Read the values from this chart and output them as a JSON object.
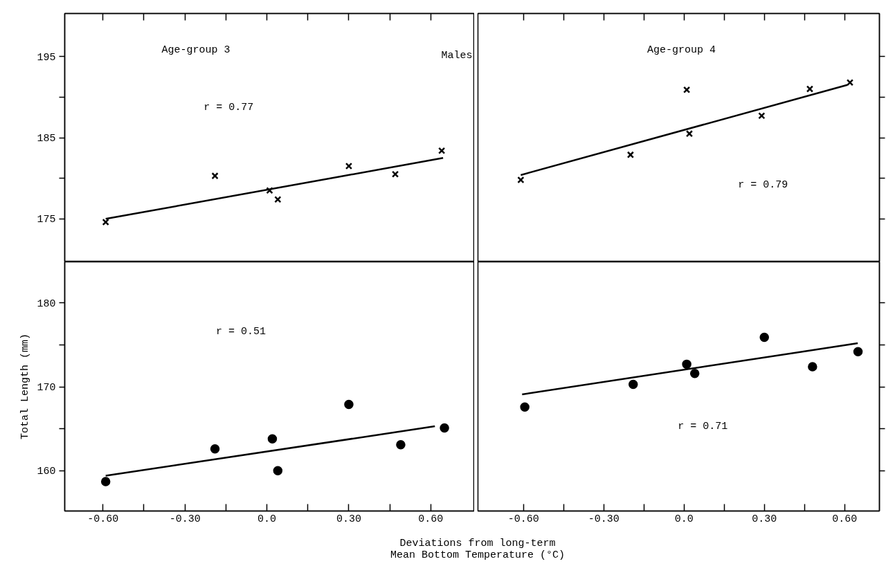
{
  "chart_data": [
    {
      "type": "scatter",
      "title": "Age-group 3",
      "annotations": [
        "Males",
        "r = 0.77"
      ],
      "tick_labels": "y",
      "xlim": [
        -0.74,
        0.76
      ],
      "ylim": [
        169.7,
        200.3
      ],
      "xticks": [
        {
          "value": -0.6,
          "label": null
        },
        {
          "value": -0.45,
          "label": null
        },
        {
          "value": -0.3,
          "label": null
        },
        {
          "value": -0.15,
          "label": null
        },
        {
          "value": 0.0,
          "label": null
        },
        {
          "value": 0.15,
          "label": null
        },
        {
          "value": 0.3,
          "label": null
        },
        {
          "value": 0.45,
          "label": null
        },
        {
          "value": 0.6,
          "label": null
        }
      ],
      "yticks": [
        175,
        {
          "value": 180,
          "label": null
        },
        185,
        {
          "value": 190,
          "label": null
        },
        195
      ],
      "series": [
        {
          "color": "#000000",
          "marker": "cross",
          "x": [
            -0.59,
            -0.19,
            0.01,
            0.04,
            0.3,
            0.47,
            0.64
          ],
          "values": [
            174.6,
            180.3,
            178.5,
            177.4,
            181.5,
            180.5,
            183.4
          ]
        },
        {
          "type": "line",
          "color": "#000000",
          "x": [
            -0.59,
            0.645
          ],
          "values": [
            175.0,
            182.5
          ]
        }
      ]
    },
    {
      "type": "scatter",
      "title": "Age-group 4",
      "annotations": [
        "r = 0.79"
      ],
      "tick_labels": false,
      "xlim": [
        -0.77,
        0.73
      ],
      "ylim": [
        169.7,
        200.3
      ],
      "xticks": [
        {
          "value": -0.6,
          "label": null
        },
        {
          "value": -0.45,
          "label": null
        },
        {
          "value": -0.3,
          "label": null
        },
        {
          "value": -0.15,
          "label": null
        },
        {
          "value": 0.0,
          "label": null
        },
        {
          "value": 0.15,
          "label": null
        },
        {
          "value": 0.3,
          "label": null
        },
        {
          "value": 0.45,
          "label": null
        },
        {
          "value": 0.6,
          "label": null
        }
      ],
      "yticks": [
        {
          "value": 175,
          "label": null
        },
        {
          "value": 180,
          "label": null
        },
        {
          "value": 185,
          "label": null
        },
        {
          "value": 190,
          "label": null
        },
        {
          "value": 195,
          "label": null
        }
      ],
      "series": [
        {
          "color": "#000000",
          "marker": "cross",
          "x": [
            -0.61,
            -0.2,
            0.01,
            0.02,
            0.29,
            0.47,
            0.62
          ],
          "values": [
            179.8,
            182.9,
            190.9,
            185.5,
            187.7,
            191.0,
            191.8
          ]
        },
        {
          "type": "line",
          "color": "#000000",
          "x": [
            -0.61,
            0.61
          ],
          "values": [
            180.4,
            191.5
          ]
        }
      ]
    },
    {
      "type": "scatter",
      "ylabel": "Total Length (mm)",
      "xlabel": "Deviations from long-term\nMean Bottom Temperature (°C)",
      "annotations": [
        "r = 0.51"
      ],
      "xlim": [
        -0.74,
        0.76
      ],
      "ylim": [
        155.2,
        184.9
      ],
      "xticks": [
        {
          "value": -0.6,
          "label": "-0.60"
        },
        {
          "value": -0.45,
          "label": null
        },
        {
          "value": -0.3,
          "label": "-0.30"
        },
        {
          "value": -0.15,
          "label": null
        },
        {
          "value": 0.0,
          "label": "0.0"
        },
        {
          "value": 0.15,
          "label": null
        },
        {
          "value": 0.3,
          "label": "0.30"
        },
        {
          "value": 0.45,
          "label": null
        },
        {
          "value": 0.6,
          "label": "0.60"
        }
      ],
      "yticks": [
        160,
        {
          "value": 165,
          "label": null
        },
        170,
        {
          "value": 175,
          "label": null
        },
        180
      ],
      "series": [
        {
          "color": "#000000",
          "marker": "circle",
          "x": [
            -0.59,
            -0.19,
            0.02,
            0.04,
            0.3,
            0.49,
            0.65
          ],
          "values": [
            158.7,
            162.6,
            163.8,
            160.0,
            167.9,
            163.1,
            165.1
          ]
        },
        {
          "type": "line",
          "color": "#000000",
          "x": [
            -0.59,
            0.615
          ],
          "values": [
            159.4,
            165.3
          ]
        }
      ]
    },
    {
      "type": "scatter",
      "annotations": [
        "r = 0.71"
      ],
      "tick_labels": "x",
      "xlim": [
        -0.77,
        0.73
      ],
      "ylim": [
        155.2,
        184.9
      ],
      "xticks": [
        {
          "value": -0.6,
          "label": "-0.60"
        },
        {
          "value": -0.45,
          "label": null
        },
        {
          "value": -0.3,
          "label": "-0.30"
        },
        {
          "value": -0.15,
          "label": null
        },
        {
          "value": 0.0,
          "label": "0.0"
        },
        {
          "value": 0.15,
          "label": null
        },
        {
          "value": 0.3,
          "label": "0.30"
        },
        {
          "value": 0.45,
          "label": null
        },
        {
          "value": 0.6,
          "label": "0.60"
        }
      ],
      "yticks": [
        {
          "value": 160,
          "label": null
        },
        {
          "value": 165,
          "label": null
        },
        {
          "value": 170,
          "label": null
        },
        {
          "value": 175,
          "label": null
        },
        {
          "value": 180,
          "label": null
        }
      ],
      "series": [
        {
          "color": "#000000",
          "marker": "circle",
          "x": [
            -0.595,
            -0.19,
            0.01,
            0.04,
            0.3,
            0.48,
            0.65
          ],
          "values": [
            167.6,
            170.3,
            172.7,
            171.6,
            175.9,
            172.4,
            174.2
          ]
        },
        {
          "type": "line",
          "color": "#000000",
          "x": [
            -0.605,
            0.649
          ],
          "values": [
            169.1,
            175.2
          ]
        }
      ]
    }
  ]
}
